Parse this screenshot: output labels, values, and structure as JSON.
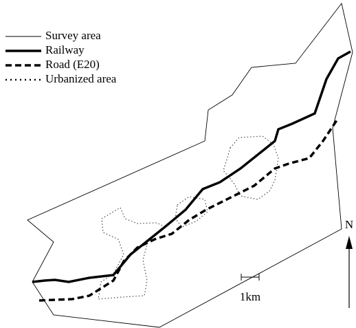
{
  "legend": {
    "items": [
      {
        "label": "Survey area"
      },
      {
        "label": "Railway"
      },
      {
        "label": "Road (E20)"
      },
      {
        "label": "Urbanized area"
      }
    ]
  },
  "scale_bar": {
    "label": "1km"
  },
  "north_arrow": {
    "label": "N"
  }
}
